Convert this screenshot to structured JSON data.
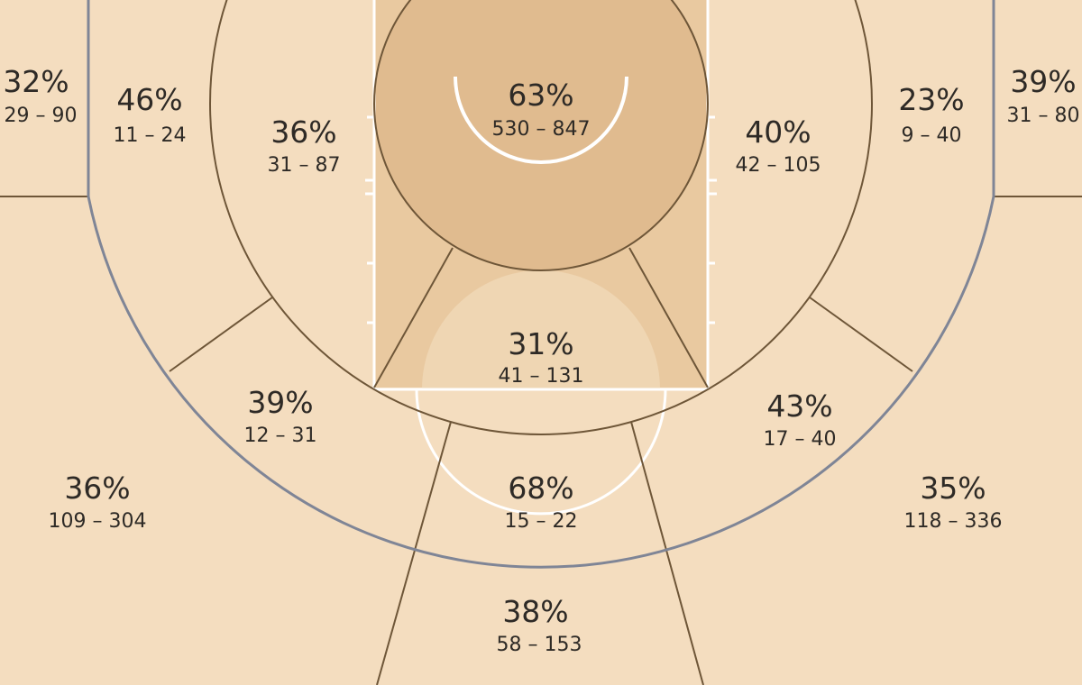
{
  "chart_data": {
    "type": "heatmap",
    "colors": {
      "floor": "#f4ddbf",
      "paint": "#e9c9a0",
      "restricted": "#e0bb8f",
      "zone_line": "#6e5638",
      "paint_line": "#ffffff",
      "three_point_line": "#7f8596",
      "text": "#2e2a26"
    },
    "zones": [
      {
        "pct": "32%",
        "made": 29,
        "attempts": 90
      },
      {
        "pct": "46%",
        "made": 11,
        "attempts": 24
      },
      {
        "pct": "36%",
        "made": 31,
        "attempts": 87
      },
      {
        "pct": "63%",
        "made": 530,
        "attempts": 847
      },
      {
        "pct": "40%",
        "made": 42,
        "attempts": 105
      },
      {
        "pct": "23%",
        "made": 9,
        "attempts": 40
      },
      {
        "pct": "39%",
        "made": 31,
        "attempts": 80
      },
      {
        "pct": "31%",
        "made": 41,
        "attempts": 131
      },
      {
        "pct": "39%",
        "made": 12,
        "attempts": 31
      },
      {
        "pct": "43%",
        "made": 17,
        "attempts": 40
      },
      {
        "pct": "36%",
        "made": 109,
        "attempts": 304
      },
      {
        "pct": "68%",
        "made": 15,
        "attempts": 22
      },
      {
        "pct": "35%",
        "made": 118,
        "attempts": 336
      },
      {
        "pct": "38%",
        "made": 58,
        "attempts": 153
      }
    ]
  }
}
